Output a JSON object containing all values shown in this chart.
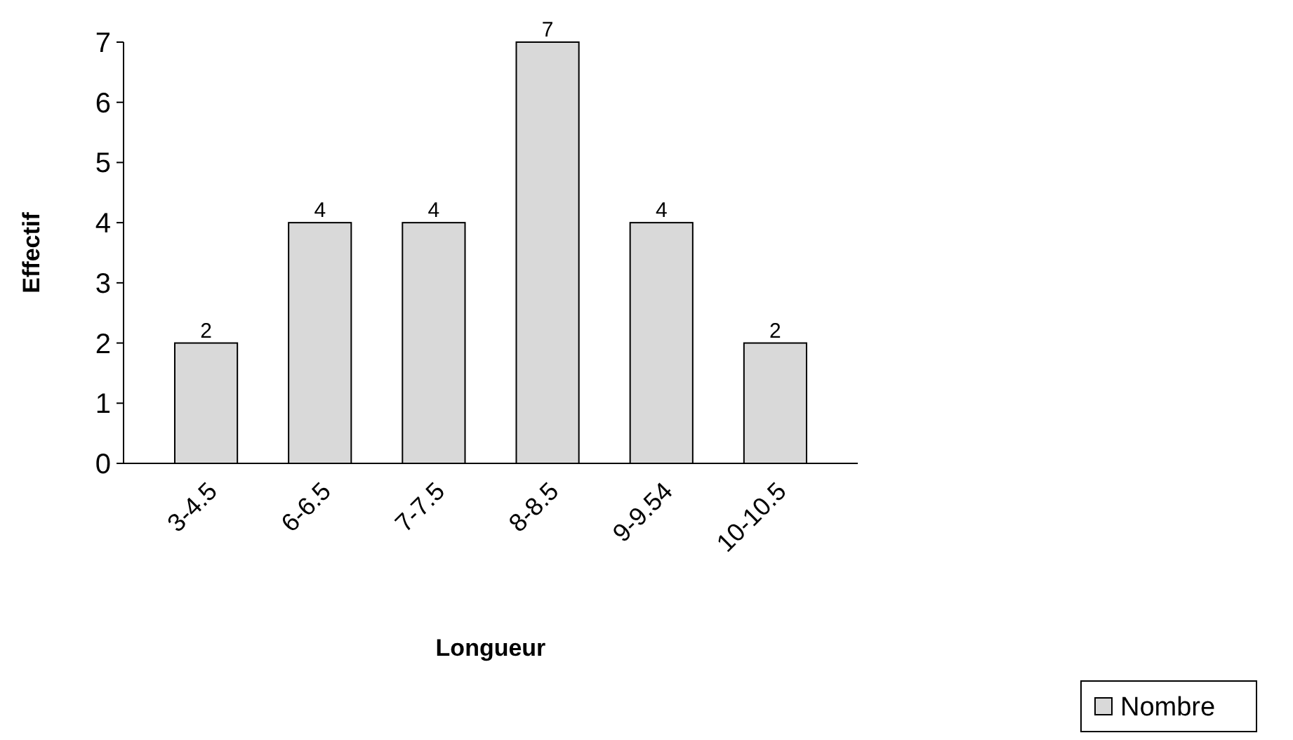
{
  "chart_data": {
    "type": "bar",
    "xlabel": "Longueur",
    "ylabel": "Effectif",
    "categories": [
      "3-4.5",
      "6-6.5",
      "7-7.5",
      "8-8.5",
      "9-9.54",
      "10-10.5"
    ],
    "series": [
      {
        "name": "Nombre",
        "color": "#d9d9d9",
        "values": [
          2,
          4,
          4,
          7,
          4,
          2
        ]
      }
    ],
    "ylim": [
      0,
      7
    ],
    "yticks": [
      0,
      1,
      2,
      3,
      4,
      5,
      6,
      7
    ],
    "grid": false,
    "data_labels": true,
    "legend": "bottom right"
  }
}
